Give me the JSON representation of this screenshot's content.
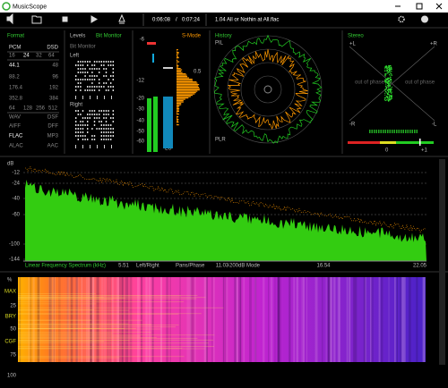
{
  "window": {
    "title": "MusicScope"
  },
  "toolbar": {
    "position": "0:06:08",
    "separator": "/",
    "duration": "0:07:24",
    "track": "1.04 All or Nothin at All.flac"
  },
  "format": {
    "title": "Format",
    "rows": [
      [
        "PCM",
        "DSD"
      ],
      [
        "16",
        "24",
        "32",
        "64"
      ],
      [
        "44.1",
        "48"
      ],
      [
        "88.2",
        "96"
      ],
      [
        "176.4",
        "192"
      ],
      [
        "352.8",
        "384"
      ],
      [
        "64",
        "128",
        "256",
        "512"
      ],
      [
        "WAV",
        "DSF"
      ],
      [
        "AIFF",
        "DFF"
      ],
      [
        "FLAC",
        "MP3"
      ],
      [
        "ALAC",
        "AAC"
      ]
    ]
  },
  "levels": {
    "title": "Levels",
    "mode": "Bit Monitor",
    "subtitle": "Bit Monitor",
    "left": "Left",
    "right": "Right"
  },
  "meter": {
    "mode": "S-Mode",
    "scale": [
      "-6",
      "-12",
      "-20",
      "-30",
      "-40",
      "-50",
      "-60"
    ],
    "histogram_label": "0.5",
    "bottom": [
      "L",
      "LU"
    ]
  },
  "history": {
    "title": "History",
    "top": "PIL",
    "bottom": "PLR"
  },
  "stereo": {
    "title": "Stereo",
    "top_left": "+L",
    "top_right": "+R",
    "bottom_left": "-R",
    "bottom_right": "-L",
    "left_phase": "out of phase",
    "right_phase": "out of phase",
    "scale_mid": "0",
    "scale_end": "+1"
  },
  "spectrum": {
    "unit": "dB",
    "yticks": [
      "-12",
      "-24",
      "-40",
      "-60",
      "-100",
      "-144"
    ],
    "title": "Linear Frequency Spectrum (kHz)",
    "xticks": [
      "5.51",
      "11.03",
      "16.54",
      "22.05"
    ],
    "modes": [
      "Left/Right",
      "Pans/Phase",
      "-200dB Mode"
    ]
  },
  "spectrogram": {
    "unit": "%",
    "labels": [
      "MAX",
      "25",
      "BRY",
      "50",
      "CGF",
      "75",
      "100"
    ]
  }
}
